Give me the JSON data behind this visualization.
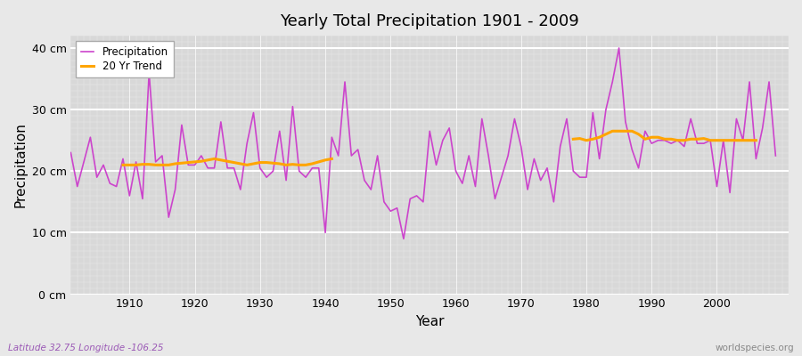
{
  "title": "Yearly Total Precipitation 1901 - 2009",
  "xlabel": "Year",
  "ylabel": "Precipitation",
  "subtitle_left": "Latitude 32.75 Longitude -106.25",
  "subtitle_right": "worldspecies.org",
  "precip_color": "#CC44CC",
  "trend_color": "#FFA500",
  "fig_bg_color": "#E8E8E8",
  "plot_bg_color": "#D8D8D8",
  "ylim": [
    0,
    42
  ],
  "ytick_labels": [
    "0 cm",
    "10 cm",
    "20 cm",
    "30 cm",
    "40 cm"
  ],
  "ytick_values": [
    0,
    10,
    20,
    30,
    40
  ],
  "xlim": [
    1901,
    2011
  ],
  "xtick_values": [
    1910,
    1920,
    1930,
    1940,
    1950,
    1960,
    1970,
    1980,
    1990,
    2000
  ],
  "years": [
    1901,
    1902,
    1903,
    1904,
    1905,
    1906,
    1907,
    1908,
    1909,
    1910,
    1911,
    1912,
    1913,
    1914,
    1915,
    1916,
    1917,
    1918,
    1919,
    1920,
    1921,
    1922,
    1923,
    1924,
    1925,
    1926,
    1927,
    1928,
    1929,
    1930,
    1931,
    1932,
    1933,
    1934,
    1935,
    1936,
    1937,
    1938,
    1939,
    1940,
    1941,
    1942,
    1943,
    1944,
    1945,
    1946,
    1947,
    1948,
    1949,
    1950,
    1951,
    1952,
    1953,
    1954,
    1955,
    1956,
    1957,
    1958,
    1959,
    1960,
    1961,
    1962,
    1963,
    1964,
    1965,
    1966,
    1967,
    1968,
    1969,
    1970,
    1971,
    1972,
    1973,
    1974,
    1975,
    1976,
    1977,
    1978,
    1979,
    1980,
    1981,
    1982,
    1983,
    1984,
    1985,
    1986,
    1987,
    1988,
    1989,
    1990,
    1991,
    1992,
    1993,
    1994,
    1995,
    1996,
    1997,
    1998,
    1999,
    2000,
    2001,
    2002,
    2003,
    2004,
    2005,
    2006,
    2007,
    2008,
    2009
  ],
  "precip": [
    23.0,
    17.5,
    21.5,
    25.5,
    19.0,
    21.0,
    18.0,
    17.5,
    22.0,
    16.0,
    21.5,
    15.5,
    36.0,
    21.5,
    22.5,
    12.5,
    17.0,
    27.5,
    21.0,
    21.0,
    22.5,
    20.5,
    20.5,
    28.0,
    20.5,
    20.5,
    17.0,
    24.5,
    29.5,
    20.5,
    19.0,
    20.0,
    26.5,
    18.5,
    30.5,
    20.0,
    19.0,
    20.5,
    20.5,
    10.0,
    25.5,
    22.5,
    34.5,
    22.5,
    23.5,
    18.5,
    17.0,
    22.5,
    15.0,
    13.5,
    14.0,
    9.0,
    15.5,
    16.0,
    15.0,
    26.5,
    21.0,
    25.0,
    27.0,
    20.0,
    18.0,
    22.5,
    17.5,
    28.5,
    22.5,
    15.5,
    19.0,
    22.5,
    28.5,
    24.0,
    17.0,
    22.0,
    18.5,
    20.5,
    15.0,
    24.0,
    28.5,
    20.0,
    19.0,
    19.0,
    29.5,
    22.0,
    30.0,
    34.5,
    40.0,
    28.0,
    23.5,
    20.5,
    26.5,
    24.5,
    25.0,
    25.0,
    24.5,
    25.0,
    24.0,
    28.5,
    24.5,
    24.5,
    25.0,
    17.5,
    25.0,
    16.5,
    28.5,
    25.0,
    34.5,
    22.0,
    27.0,
    34.5,
    22.5
  ],
  "trend_seg1_years": [
    1909,
    1910,
    1911,
    1912,
    1913,
    1914,
    1915,
    1916,
    1917,
    1918,
    1919,
    1920,
    1921,
    1922,
    1923,
    1924,
    1925,
    1926,
    1927,
    1928,
    1929,
    1930,
    1931,
    1932,
    1933,
    1934,
    1935,
    1936,
    1937,
    1938,
    1939,
    1940,
    1941
  ],
  "trend_seg1_vals": [
    21.0,
    21.0,
    21.0,
    21.1,
    21.1,
    21.0,
    21.0,
    21.0,
    21.2,
    21.3,
    21.4,
    21.5,
    21.6,
    21.8,
    22.0,
    21.8,
    21.6,
    21.4,
    21.2,
    21.0,
    21.2,
    21.4,
    21.4,
    21.3,
    21.2,
    21.0,
    21.1,
    21.0,
    21.0,
    21.2,
    21.5,
    21.8,
    22.0
  ],
  "trend_seg2_years": [
    1978,
    1979,
    1980,
    1981,
    1982,
    1983,
    1984,
    1985,
    1986,
    1987,
    1988,
    1989,
    1990,
    1991,
    1992,
    1993,
    1994,
    1995,
    1996,
    1997,
    1998,
    1999,
    2000,
    2001,
    2002,
    2003,
    2004,
    2005,
    2006
  ],
  "trend_seg2_vals": [
    25.2,
    25.3,
    25.0,
    25.2,
    25.5,
    26.0,
    26.5,
    26.5,
    26.5,
    26.5,
    26.0,
    25.2,
    25.5,
    25.5,
    25.2,
    25.2,
    25.0,
    25.0,
    25.2,
    25.2,
    25.3,
    25.0,
    25.0,
    25.0,
    25.0,
    25.0,
    25.0,
    25.0,
    25.0
  ]
}
